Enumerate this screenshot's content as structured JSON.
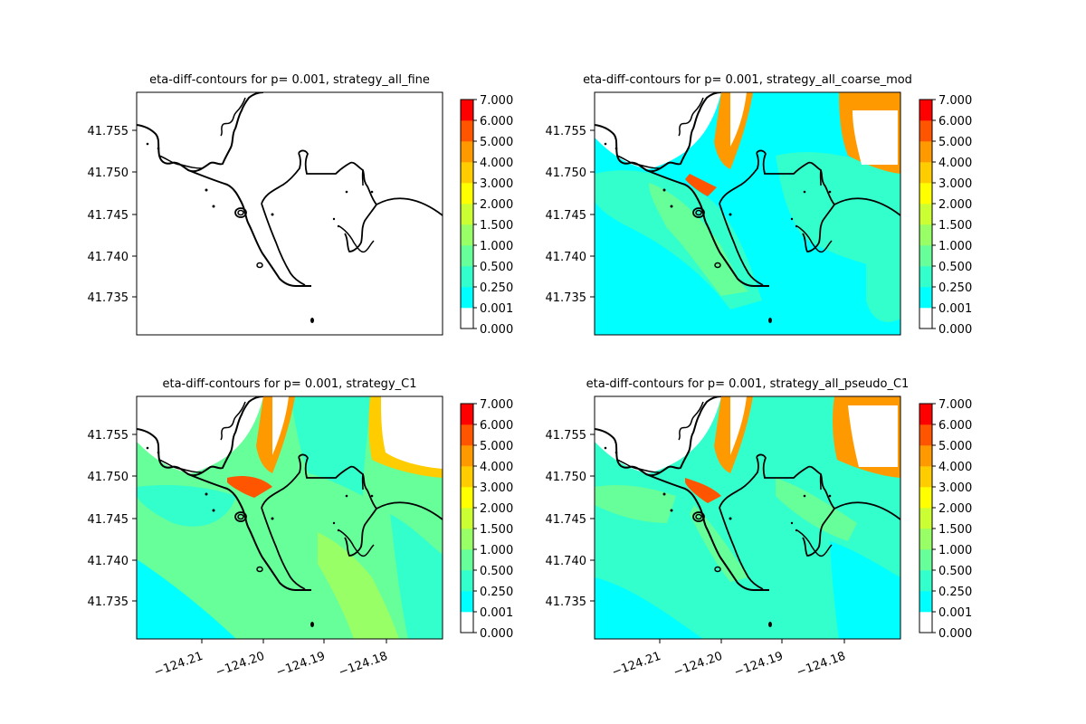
{
  "figure": {
    "background": "#ffffff",
    "coastline_color": "#000000"
  },
  "colormap": {
    "levels": [
      0.0,
      0.001,
      0.25,
      0.5,
      1.0,
      1.5,
      2.0,
      3.0,
      4.0,
      5.0,
      6.0,
      7.0
    ],
    "level_labels": [
      "0.000",
      "0.001",
      "0.250",
      "0.500",
      "1.000",
      "1.500",
      "2.000",
      "3.000",
      "4.000",
      "5.000",
      "6.000",
      "7.000"
    ],
    "colors": [
      "#ffffff",
      "#00ffff",
      "#33ffcc",
      "#66ff99",
      "#99ff66",
      "#ccff33",
      "#ffff00",
      "#ffcc00",
      "#ff9900",
      "#ff5500",
      "#ff0000"
    ]
  },
  "chart_data": [
    {
      "type": "heatmap",
      "title": "eta-diff-contours for p= 0.001, strategy_all_fine",
      "yticks": [
        "41.755",
        "41.750",
        "41.745",
        "41.740",
        "41.735"
      ],
      "xticks": [],
      "fill": "none",
      "colorbar": true
    },
    {
      "type": "heatmap",
      "title": "eta-diff-contours for p= 0.001, strategy_all_coarse_mod",
      "yticks": [
        "41.755",
        "41.750",
        "41.745",
        "41.740",
        "41.735"
      ],
      "xticks": [],
      "fill": "cyan-dominant",
      "colorbar": true
    },
    {
      "type": "heatmap",
      "title": "eta-diff-contours for p= 0.001, strategy_C1",
      "yticks": [
        "41.755",
        "41.750",
        "41.745",
        "41.740",
        "41.735"
      ],
      "xticks": [
        "−124.21",
        "−124.20",
        "−124.19",
        "−124.18"
      ],
      "fill": "green-dominant",
      "colorbar": true
    },
    {
      "type": "heatmap",
      "title": "eta-diff-contours for p= 0.001, strategy_all_pseudo_C1",
      "yticks": [
        "41.755",
        "41.750",
        "41.745",
        "41.740",
        "41.735"
      ],
      "xticks": [
        "−124.21",
        "−124.20",
        "−124.19",
        "−124.18"
      ],
      "fill": "mixed",
      "colorbar": true
    }
  ]
}
